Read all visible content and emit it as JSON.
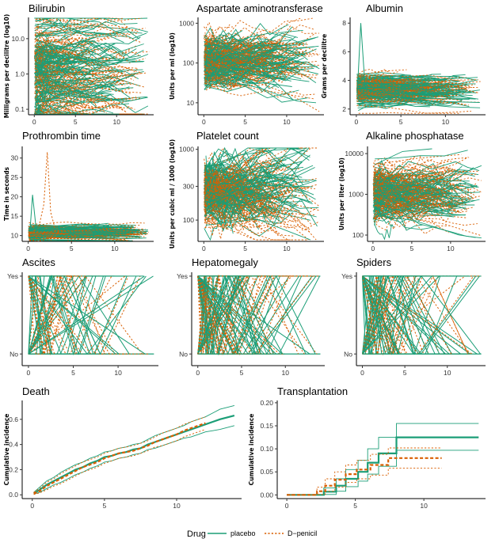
{
  "colors": {
    "placebo": "#1b9e77",
    "dpenicil": "#d95f02",
    "axis": "#000000"
  },
  "legend": {
    "title": "Drug",
    "entries": [
      {
        "label": "placebo",
        "color": "#1b9e77",
        "dash": "solid"
      },
      {
        "label": "D−penicil",
        "color": "#d95f02",
        "dash": "dotted"
      }
    ],
    "placement": "bottom"
  },
  "chart_data": [
    {
      "id": "bilirubin",
      "type": "line",
      "title": "Bilirubin",
      "ylabel": "Milligrams per decilitre (log10)",
      "scale": "log",
      "xlim": [
        -0.7,
        14.5
      ],
      "ylim": [
        0.07,
        40
      ],
      "xticks": [
        0,
        5,
        10
      ],
      "yticks": [
        0.1,
        1.0,
        10.0
      ],
      "ytick_labels": [
        "0.1",
        "1.0",
        "10.0"
      ],
      "series_count": 312,
      "y_center": 1.4,
      "y_spread": 1.0
    },
    {
      "id": "ast",
      "type": "line",
      "title": "Aspartate aminotransferase",
      "ylabel": "Units per ml (log10)",
      "scale": "log",
      "xlim": [
        -0.7,
        14.5
      ],
      "ylim": [
        5,
        1400
      ],
      "xticks": [
        0,
        5,
        10
      ],
      "yticks": [
        10,
        100,
        1000
      ],
      "ytick_labels": [
        "10",
        "100",
        "1000"
      ],
      "series_count": 312,
      "y_center": 110,
      "y_spread": 0.3
    },
    {
      "id": "albumin",
      "type": "line",
      "title": "Albumin",
      "ylabel": "Grams per decilitre",
      "scale": "linear",
      "xlim": [
        -0.7,
        14.5
      ],
      "ylim": [
        1.6,
        8.4
      ],
      "xticks": [
        0,
        5,
        10
      ],
      "yticks": [
        2,
        4,
        6,
        8
      ],
      "ytick_labels": [
        "2",
        "4",
        "6",
        "8"
      ],
      "series_count": 312,
      "y_center": 3.4,
      "y_spread": 0.45
    },
    {
      "id": "prothrombin",
      "type": "line",
      "title": "Prothrombin time",
      "ylabel": "Time in seconds",
      "scale": "linear",
      "xlim": [
        -0.7,
        14.5
      ],
      "ylim": [
        8.5,
        33
      ],
      "xticks": [
        0,
        5,
        10
      ],
      "yticks": [
        10,
        15,
        20,
        25,
        30
      ],
      "ytick_labels": [
        "10",
        "15",
        "20",
        "25",
        "30"
      ],
      "series_count": 312,
      "y_center": 10.7,
      "y_spread": 0.8
    },
    {
      "id": "platelet",
      "type": "line",
      "title": "Platelet count",
      "ylabel": "Units per cubic ml / 1000 (log10)",
      "scale": "log",
      "xlim": [
        -0.7,
        14.5
      ],
      "ylim": [
        50,
        1100
      ],
      "xticks": [
        0,
        5,
        10
      ],
      "yticks": [
        100,
        300,
        1000
      ],
      "ytick_labels": [
        "100",
        "300",
        "1000"
      ],
      "series_count": 312,
      "y_center": 250,
      "y_spread": 0.17
    },
    {
      "id": "alkphos",
      "type": "line",
      "title": "Alkaline phosphatase",
      "ylabel": "Units per liter (log10)",
      "scale": "log",
      "xlim": [
        -0.7,
        14.5
      ],
      "ylim": [
        70,
        15000
      ],
      "xticks": [
        0,
        5,
        10
      ],
      "yticks": [
        100,
        1000,
        10000
      ],
      "ytick_labels": [
        "100",
        "1000",
        "10000"
      ],
      "series_count": 312,
      "y_center": 1100,
      "y_spread": 0.28
    },
    {
      "id": "ascites",
      "type": "line",
      "title": "Ascites",
      "ylabel": "",
      "scale": "binary",
      "xlim": [
        -0.7,
        14.5
      ],
      "ylim": [
        -0.15,
        1.05
      ],
      "xticks": [
        0,
        5,
        10
      ],
      "yticks": [
        0,
        1
      ],
      "ytick_labels": [
        "No",
        "Yes"
      ],
      "series_count": 60,
      "p_yes": 0.08
    },
    {
      "id": "hepatomegaly",
      "type": "line",
      "title": "Hepatomegaly",
      "ylabel": "",
      "scale": "binary",
      "xlim": [
        -0.7,
        14.5
      ],
      "ylim": [
        -0.15,
        1.05
      ],
      "xticks": [
        0,
        5,
        10
      ],
      "yticks": [
        0,
        1
      ],
      "ytick_labels": [
        "No",
        "Yes"
      ],
      "series_count": 110,
      "p_yes": 0.5
    },
    {
      "id": "spiders",
      "type": "line",
      "title": "Spiders",
      "ylabel": "",
      "scale": "binary",
      "xlim": [
        -0.7,
        14.5
      ],
      "ylim": [
        -0.15,
        1.05
      ],
      "xticks": [
        0,
        5,
        10
      ],
      "yticks": [
        0,
        1
      ],
      "ytick_labels": [
        "No",
        "Yes"
      ],
      "series_count": 90,
      "p_yes": 0.3
    },
    {
      "id": "death",
      "type": "line",
      "title": "Death",
      "ylabel": "Cumulative incidence",
      "scale": "linear",
      "step": false,
      "xlim": [
        -0.7,
        14.5
      ],
      "ylim": [
        -0.03,
        0.75
      ],
      "xticks": [
        0,
        5,
        10
      ],
      "yticks": [
        0,
        0.2,
        0.4,
        0.6
      ],
      "ytick_labels": [
        "0.0",
        "0.2",
        "0.4",
        "0.6"
      ],
      "series": [
        {
          "name": "placebo",
          "x": [
            0.1,
            0.5,
            1,
            1.5,
            2,
            2.5,
            3,
            3.5,
            4,
            4.5,
            5,
            5.5,
            6,
            6.5,
            7,
            7.5,
            8,
            8.5,
            9,
            9.5,
            10,
            10.5,
            11,
            11.5,
            12,
            12.5,
            13,
            14
          ],
          "y": [
            0.01,
            0.04,
            0.08,
            0.11,
            0.14,
            0.17,
            0.2,
            0.22,
            0.25,
            0.27,
            0.3,
            0.31,
            0.33,
            0.34,
            0.36,
            0.37,
            0.4,
            0.42,
            0.44,
            0.46,
            0.48,
            0.5,
            0.52,
            0.54,
            0.56,
            0.58,
            0.6,
            0.63
          ],
          "lower": [
            0.005,
            0.02,
            0.05,
            0.08,
            0.1,
            0.13,
            0.16,
            0.18,
            0.21,
            0.23,
            0.26,
            0.27,
            0.29,
            0.3,
            0.32,
            0.33,
            0.36,
            0.37,
            0.39,
            0.41,
            0.43,
            0.45,
            0.46,
            0.48,
            0.5,
            0.51,
            0.52,
            0.55
          ],
          "upper": [
            0.02,
            0.06,
            0.11,
            0.14,
            0.18,
            0.21,
            0.24,
            0.26,
            0.29,
            0.31,
            0.34,
            0.35,
            0.37,
            0.38,
            0.4,
            0.41,
            0.44,
            0.47,
            0.49,
            0.51,
            0.53,
            0.55,
            0.58,
            0.6,
            0.62,
            0.65,
            0.68,
            0.71
          ]
        },
        {
          "name": "D−penicil",
          "x": [
            0.1,
            0.5,
            1,
            1.5,
            2,
            2.5,
            3,
            3.5,
            4,
            4.5,
            5,
            5.5,
            6,
            6.5,
            7,
            7.5,
            8,
            8.5,
            9,
            9.5,
            10,
            10.5,
            11,
            11.5,
            12
          ],
          "y": [
            0.01,
            0.03,
            0.07,
            0.1,
            0.13,
            0.16,
            0.19,
            0.22,
            0.24,
            0.26,
            0.29,
            0.31,
            0.33,
            0.34,
            0.35,
            0.37,
            0.39,
            0.42,
            0.44,
            0.46,
            0.48,
            0.51,
            0.53,
            0.55,
            0.57
          ],
          "lower": [
            0.003,
            0.015,
            0.04,
            0.07,
            0.09,
            0.12,
            0.15,
            0.18,
            0.2,
            0.22,
            0.25,
            0.27,
            0.29,
            0.3,
            0.31,
            0.33,
            0.35,
            0.38,
            0.39,
            0.41,
            0.43,
            0.46,
            0.48,
            0.5,
            0.52
          ],
          "upper": [
            0.02,
            0.05,
            0.1,
            0.13,
            0.17,
            0.2,
            0.23,
            0.26,
            0.28,
            0.3,
            0.33,
            0.35,
            0.37,
            0.38,
            0.39,
            0.41,
            0.43,
            0.46,
            0.49,
            0.51,
            0.53,
            0.56,
            0.58,
            0.6,
            0.62
          ]
        }
      ]
    },
    {
      "id": "transplantation",
      "type": "line",
      "title": "Transplantation",
      "ylabel": "Cumulative incidence",
      "scale": "linear",
      "step": true,
      "xlim": [
        -0.7,
        14.5
      ],
      "ylim": [
        -0.008,
        0.205
      ],
      "xticks": [
        0,
        5,
        10
      ],
      "yticks": [
        0,
        0.05,
        0.1,
        0.15,
        0.2
      ],
      "ytick_labels": [
        "0.00",
        "0.05",
        "0.10",
        "0.15",
        "0.20"
      ],
      "series": [
        {
          "name": "placebo",
          "x": [
            0,
            2.7,
            3.6,
            4.3,
            5.2,
            5.9,
            6.7,
            8.0,
            14.0
          ],
          "y": [
            0,
            0.007,
            0.02,
            0.035,
            0.05,
            0.07,
            0.09,
            0.125,
            0.125
          ],
          "lower": [
            0,
            0.001,
            0.008,
            0.018,
            0.03,
            0.045,
            0.062,
            0.097,
            0.097
          ],
          "upper": [
            0,
            0.015,
            0.035,
            0.055,
            0.075,
            0.1,
            0.125,
            0.155,
            0.155
          ]
        },
        {
          "name": "D−penicil",
          "x": [
            0,
            2.2,
            2.8,
            3.5,
            4.3,
            5.1,
            6.1,
            7.4,
            11.3
          ],
          "y": [
            0,
            0.008,
            0.02,
            0.033,
            0.045,
            0.055,
            0.065,
            0.08,
            0.08
          ],
          "lower": [
            0,
            0.001,
            0.008,
            0.017,
            0.027,
            0.035,
            0.043,
            0.058,
            0.058
          ],
          "upper": [
            0,
            0.017,
            0.035,
            0.05,
            0.065,
            0.075,
            0.088,
            0.102,
            0.102
          ]
        }
      ]
    }
  ]
}
